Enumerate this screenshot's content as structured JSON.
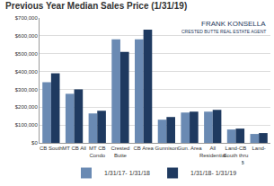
{
  "chart_data": {
    "type": "bar",
    "title": "Previous Year Median Sales Price (1/31/19)",
    "categories": [
      "CB South",
      "MT CB All",
      "MT CB Condo",
      "Crested Butte",
      "CB Area",
      "Gunnison",
      "Gun. Area",
      "All Residential",
      "Land-CB South thru MT CB",
      "Land-"
    ],
    "series": [
      {
        "name": "1/31/17- 1/31/18",
        "color": "#6a8ab3",
        "values": [
          340000,
          275000,
          165000,
          580000,
          580000,
          130000,
          170000,
          175000,
          75000,
          50000
        ]
      },
      {
        "name": "1/31/18- 1/31/19",
        "color": "#1f3a60",
        "values": [
          390000,
          300000,
          180000,
          510000,
          635000,
          145000,
          175000,
          185000,
          80000,
          55000
        ]
      }
    ],
    "ylim": [
      0,
      700000
    ],
    "yticks": [
      {
        "value": 0,
        "label": "$0"
      },
      {
        "value": 100000,
        "label": "$100,000"
      },
      {
        "value": 200000,
        "label": "$200,000"
      },
      {
        "value": 300000,
        "label": "$300,000"
      },
      {
        "value": 400000,
        "label": "$400,000"
      },
      {
        "value": 500000,
        "label": "$500,000"
      },
      {
        "value": 600000,
        "label": "$600,000"
      },
      {
        "value": 700000,
        "label": "$700,000"
      }
    ],
    "grid": true,
    "legend": "bottom",
    "annotations": [
      "FRANK KONSELLA",
      "CRESTED BUTTE REAL ESTATE AGENT"
    ]
  }
}
